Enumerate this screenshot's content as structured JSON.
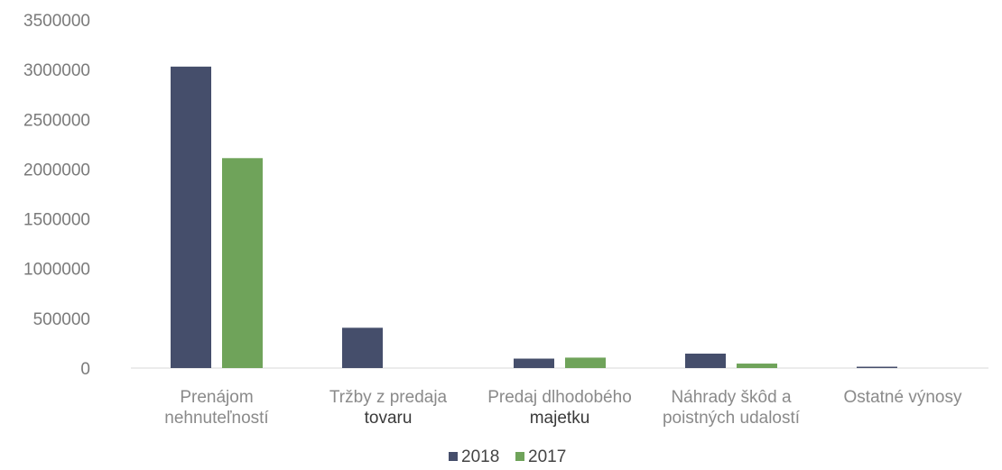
{
  "chart_data": {
    "type": "bar",
    "categories": [
      [
        "Prenájom",
        "nehnuteľností"
      ],
      [
        "Tržby z predaja",
        "tovaru"
      ],
      [
        "Predaj dlhodobého",
        "majetku"
      ],
      [
        "Náhrady škôd a",
        "poistných udalostí"
      ],
      [
        "Ostatné výnosy"
      ]
    ],
    "series": [
      {
        "name": "2018",
        "color": "#454e6b",
        "values": [
          3030000,
          405000,
          95000,
          145000,
          10000
        ]
      },
      {
        "name": "2017",
        "color": "#6fa35a",
        "values": [
          2110000,
          0,
          105000,
          45000,
          0
        ]
      }
    ],
    "yticks": [
      "0",
      "500000",
      "1000000",
      "1500000",
      "2000000",
      "2500000",
      "3000000",
      "3500000"
    ],
    "ylim": [
      0,
      3500000
    ],
    "legend_position": "bottom",
    "grid": false,
    "xlabel": "",
    "ylabel": ""
  }
}
